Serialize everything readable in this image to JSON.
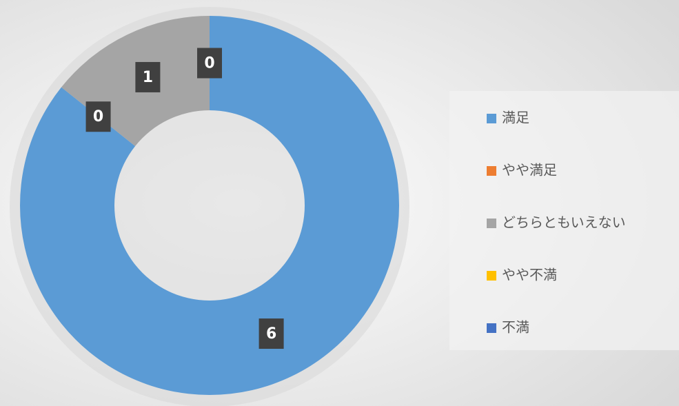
{
  "chart_data": {
    "type": "donut",
    "categories": [
      "満足",
      "やや満足",
      "どちらともいえない",
      "やや不満",
      "不満"
    ],
    "values": [
      6,
      0,
      1,
      0,
      0
    ],
    "colors": [
      "#5b9bd5",
      "#ed7d31",
      "#a5a5a5",
      "#ffc000",
      "#4472c4"
    ],
    "legend": "right"
  }
}
